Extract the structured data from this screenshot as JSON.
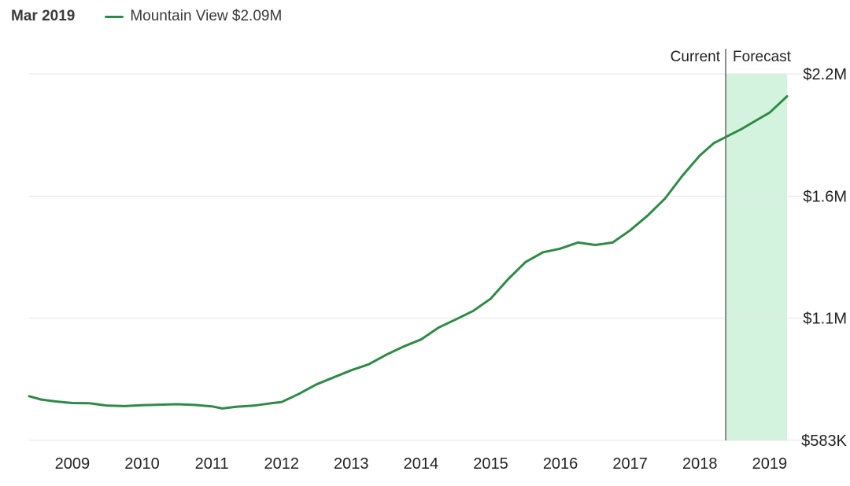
{
  "header": {
    "date_label": "Mar 2019",
    "legend_label": "Mountain View $2.09M"
  },
  "colors": {
    "line": "#2e8b46",
    "forecast_fill": "#d4f3df",
    "grid": "#e6e6e6",
    "divider": "#666666"
  },
  "chart_data": {
    "type": "line",
    "title": "",
    "xlabel": "",
    "ylabel": "",
    "x_ticks": [
      "2009",
      "2010",
      "2011",
      "2012",
      "2013",
      "2014",
      "2015",
      "2016",
      "2017",
      "2018",
      "2019"
    ],
    "x_tick_values": [
      2009.0,
      2010.0,
      2011.0,
      2012.0,
      2013.0,
      2014.0,
      2015.0,
      2016.0,
      2017.0,
      2018.0,
      2019.0
    ],
    "y_ticks": [
      "$583K",
      "$1.1M",
      "$1.6M",
      "$2.2M"
    ],
    "y_tick_values": [
      0.583,
      1.1,
      1.6,
      2.2
    ],
    "xlim": [
      2008.38,
      2019.25
    ],
    "ylim": [
      0.583,
      2.2
    ],
    "y_units": "$M",
    "current_label": "Current",
    "forecast_label": "Forecast",
    "forecast_start": 2018.37,
    "series": [
      {
        "name": "Mountain View",
        "x": [
          2008.38,
          2008.55,
          2008.75,
          2009.0,
          2009.25,
          2009.5,
          2009.75,
          2010.0,
          2010.25,
          2010.5,
          2010.75,
          2011.0,
          2011.15,
          2011.35,
          2011.6,
          2011.85,
          2012.0,
          2012.25,
          2012.5,
          2012.75,
          2013.0,
          2013.25,
          2013.5,
          2013.75,
          2014.0,
          2014.25,
          2014.5,
          2014.75,
          2015.0,
          2015.25,
          2015.5,
          2015.75,
          2016.0,
          2016.25,
          2016.5,
          2016.75,
          2017.0,
          2017.25,
          2017.5,
          2017.75,
          2018.0,
          2018.2,
          2018.37,
          2018.6,
          2018.8,
          2019.0,
          2019.25
        ],
        "y": [
          0.77,
          0.756,
          0.748,
          0.741,
          0.74,
          0.73,
          0.728,
          0.732,
          0.734,
          0.736,
          0.733,
          0.727,
          0.718,
          0.725,
          0.73,
          0.74,
          0.745,
          0.78,
          0.82,
          0.85,
          0.88,
          0.905,
          0.945,
          0.98,
          1.01,
          1.06,
          1.095,
          1.13,
          1.18,
          1.26,
          1.33,
          1.37,
          1.385,
          1.41,
          1.4,
          1.41,
          1.46,
          1.52,
          1.59,
          1.7,
          1.8,
          1.86,
          1.89,
          1.93,
          1.97,
          2.01,
          2.09
        ]
      }
    ],
    "grid": true,
    "legend_position": "top-left"
  }
}
